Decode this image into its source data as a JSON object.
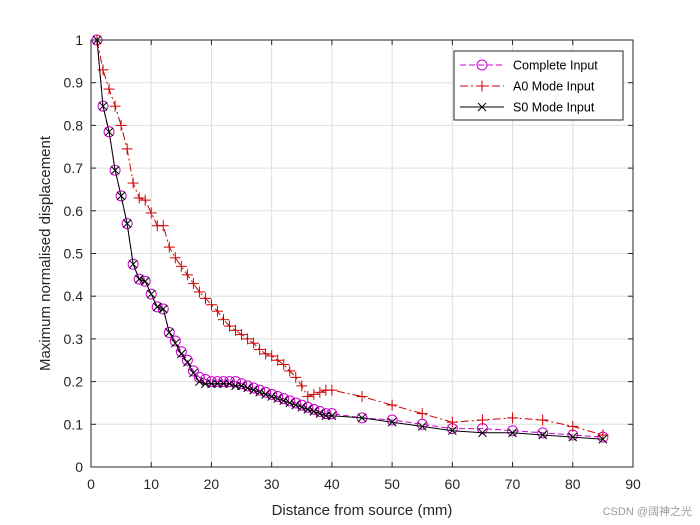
{
  "chart_data": {
    "type": "line",
    "title": "",
    "xlabel": "Distance from source (mm)",
    "ylabel": "Maximum normalised displacement",
    "xlim": [
      0,
      90
    ],
    "ylim": [
      0,
      1
    ],
    "xticks": [
      0,
      10,
      20,
      30,
      40,
      50,
      60,
      70,
      80,
      90
    ],
    "yticks": [
      0,
      0.1,
      0.2,
      0.3,
      0.4,
      0.5,
      0.6,
      0.7,
      0.8,
      0.9,
      1
    ],
    "grid": true,
    "legend_position": "top-right",
    "series": [
      {
        "name": "Complete Input",
        "color": "#cc00cc",
        "line_style": "dashed",
        "marker": "circle",
        "x": [
          1,
          2,
          3,
          4,
          5,
          6,
          7,
          8,
          9,
          10,
          11,
          12,
          13,
          14,
          15,
          16,
          17,
          18,
          19,
          20,
          21,
          22,
          23,
          24,
          25,
          26,
          27,
          28,
          29,
          30,
          31,
          32,
          33,
          34,
          35,
          36,
          37,
          38,
          39,
          40,
          45,
          50,
          55,
          60,
          65,
          70,
          75,
          80,
          85
        ],
        "y": [
          1.0,
          0.845,
          0.785,
          0.695,
          0.635,
          0.57,
          0.475,
          0.44,
          0.435,
          0.405,
          0.375,
          0.37,
          0.315,
          0.295,
          0.27,
          0.25,
          0.225,
          0.21,
          0.205,
          0.2,
          0.2,
          0.2,
          0.2,
          0.2,
          0.195,
          0.19,
          0.185,
          0.18,
          0.175,
          0.17,
          0.165,
          0.16,
          0.155,
          0.15,
          0.145,
          0.14,
          0.135,
          0.13,
          0.125,
          0.125,
          0.115,
          0.11,
          0.1,
          0.09,
          0.09,
          0.085,
          0.08,
          0.075,
          0.07
        ]
      },
      {
        "name": "A0 Mode Input",
        "color": "#cc0000",
        "line_style": "dash-dot",
        "marker": "plus",
        "x": [
          1,
          2,
          3,
          4,
          5,
          6,
          7,
          8,
          9,
          10,
          11,
          12,
          13,
          14,
          15,
          16,
          17,
          18,
          19,
          20,
          21,
          22,
          23,
          24,
          25,
          26,
          27,
          28,
          29,
          30,
          31,
          32,
          33,
          34,
          35,
          36,
          37,
          38,
          39,
          40,
          45,
          50,
          55,
          60,
          65,
          70,
          75,
          80,
          85
        ],
        "y": [
          1.0,
          0.93,
          0.885,
          0.845,
          0.8,
          0.745,
          0.665,
          0.63,
          0.625,
          0.595,
          0.565,
          0.565,
          0.515,
          0.49,
          0.47,
          0.45,
          0.43,
          0.41,
          0.395,
          0.38,
          0.365,
          0.345,
          0.33,
          0.32,
          0.31,
          0.3,
          0.29,
          0.275,
          0.265,
          0.26,
          0.25,
          0.24,
          0.225,
          0.21,
          0.19,
          0.165,
          0.17,
          0.175,
          0.18,
          0.18,
          0.165,
          0.145,
          0.125,
          0.105,
          0.11,
          0.115,
          0.11,
          0.095,
          0.075
        ]
      },
      {
        "name": "S0 Mode Input",
        "color": "#000000",
        "line_style": "solid",
        "marker": "x",
        "x": [
          1,
          2,
          3,
          4,
          5,
          6,
          7,
          8,
          9,
          10,
          11,
          12,
          13,
          14,
          15,
          16,
          17,
          18,
          19,
          20,
          21,
          22,
          23,
          24,
          25,
          26,
          27,
          28,
          29,
          30,
          31,
          32,
          33,
          34,
          35,
          36,
          37,
          38,
          39,
          40,
          45,
          50,
          55,
          60,
          65,
          70,
          75,
          80,
          85
        ],
        "y": [
          1.0,
          0.845,
          0.785,
          0.695,
          0.635,
          0.57,
          0.475,
          0.44,
          0.435,
          0.405,
          0.375,
          0.37,
          0.315,
          0.29,
          0.265,
          0.245,
          0.22,
          0.2,
          0.195,
          0.195,
          0.195,
          0.195,
          0.195,
          0.19,
          0.19,
          0.185,
          0.18,
          0.175,
          0.17,
          0.165,
          0.16,
          0.155,
          0.15,
          0.145,
          0.14,
          0.135,
          0.13,
          0.125,
          0.12,
          0.12,
          0.115,
          0.105,
          0.095,
          0.085,
          0.08,
          0.08,
          0.075,
          0.07,
          0.065
        ]
      }
    ]
  },
  "watermark": "CSDN @阔神之光"
}
